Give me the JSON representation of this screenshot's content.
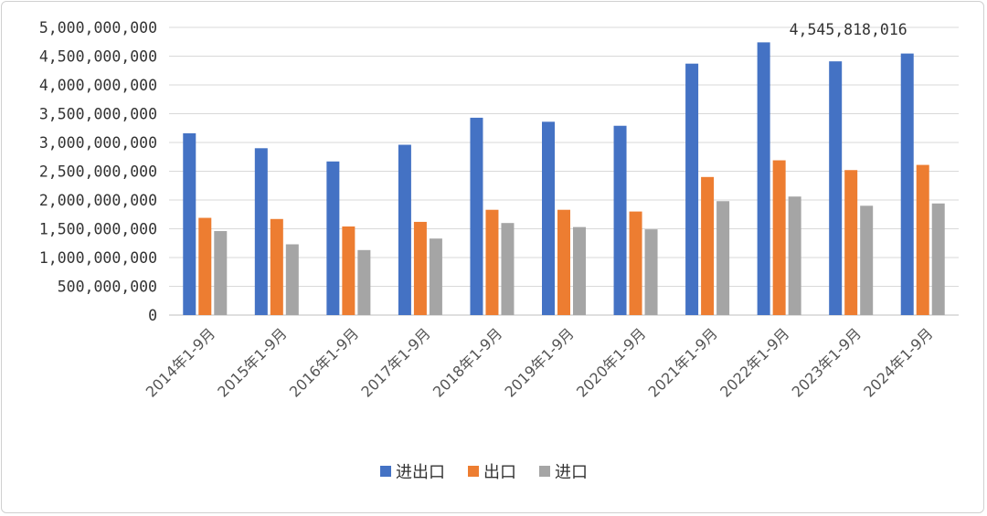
{
  "chart_data": {
    "type": "bar",
    "title": "",
    "xlabel": "",
    "ylabel": "",
    "ylim": [
      0,
      5000000000
    ],
    "yticks": [
      0,
      500000000,
      1000000000,
      1500000000,
      2000000000,
      2500000000,
      3000000000,
      3500000000,
      4000000000,
      4500000000,
      5000000000
    ],
    "ytick_labels": [
      "0",
      "500,000,000",
      "1,000,000,000",
      "1,500,000,000",
      "2,000,000,000",
      "2,500,000,000",
      "3,000,000,000",
      "3,500,000,000",
      "4,000,000,000",
      "4,500,000,000",
      "5,000,000,000"
    ],
    "grid": true,
    "legend_position": "bottom",
    "categories": [
      "2014年1-9月",
      "2015年1-9月",
      "2016年1-9月",
      "2017年1-9月",
      "2018年1-9月",
      "2019年1-9月",
      "2020年1-9月",
      "2021年1-9月",
      "2022年1-9月",
      "2023年1-9月",
      "2024年1-9月"
    ],
    "series": [
      {
        "name": "进出口",
        "color": "#4472c4",
        "values": [
          3160000000,
          2900000000,
          2670000000,
          2960000000,
          3430000000,
          3360000000,
          3290000000,
          4370000000,
          4740000000,
          4410000000,
          4545818016
        ]
      },
      {
        "name": "出口",
        "color": "#ed7d31",
        "values": [
          1690000000,
          1670000000,
          1540000000,
          1620000000,
          1830000000,
          1830000000,
          1800000000,
          2400000000,
          2690000000,
          2520000000,
          2610000000
        ]
      },
      {
        "name": "进口",
        "color": "#a5a5a5",
        "values": [
          1460000000,
          1230000000,
          1130000000,
          1330000000,
          1600000000,
          1530000000,
          1490000000,
          1980000000,
          2060000000,
          1900000000,
          1940000000
        ]
      }
    ],
    "annotations": [
      {
        "text": "4,545,818,016",
        "series": 0,
        "category": 10
      }
    ]
  }
}
